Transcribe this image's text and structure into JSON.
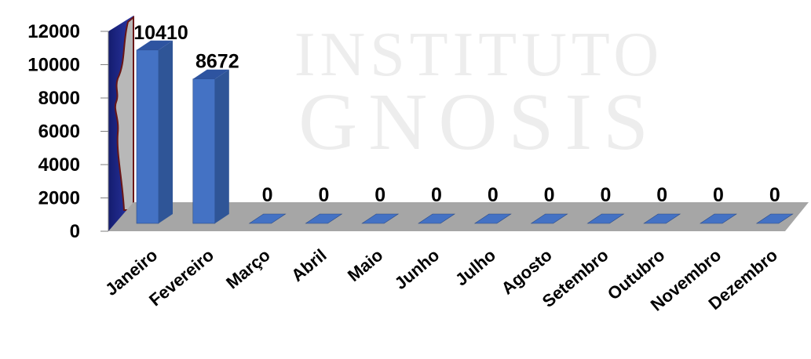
{
  "watermark": {
    "line1": "INSTITUTO",
    "line2": "GNOSIS"
  },
  "chart_data": {
    "type": "bar",
    "categories": [
      "Janeiro",
      "Fevereiro",
      "Março",
      "Abril",
      "Maio",
      "Junho",
      "Julho",
      "Agosto",
      "Setembro",
      "Outubro",
      "Novembro",
      "Dezembro"
    ],
    "values": [
      10410,
      8672,
      0,
      0,
      0,
      0,
      0,
      0,
      0,
      0,
      0,
      0
    ],
    "data_labels": [
      "10410",
      "8672",
      "0",
      "0",
      "0",
      "0",
      "0",
      "0",
      "0",
      "0",
      "0",
      "0"
    ],
    "title": "",
    "xlabel": "",
    "ylabel": "",
    "ylim": [
      0,
      12000
    ],
    "yticks": [
      "0",
      "2000",
      "4000",
      "6000",
      "8000",
      "10000",
      "12000"
    ],
    "grid": false,
    "legend": "none",
    "colors": {
      "bar_front": "#4472C4",
      "bar_side": "#2F5597",
      "bar_top": "#2E54A0",
      "floor": "#A6A6A6",
      "back_wall": "#1F2A8A"
    }
  }
}
